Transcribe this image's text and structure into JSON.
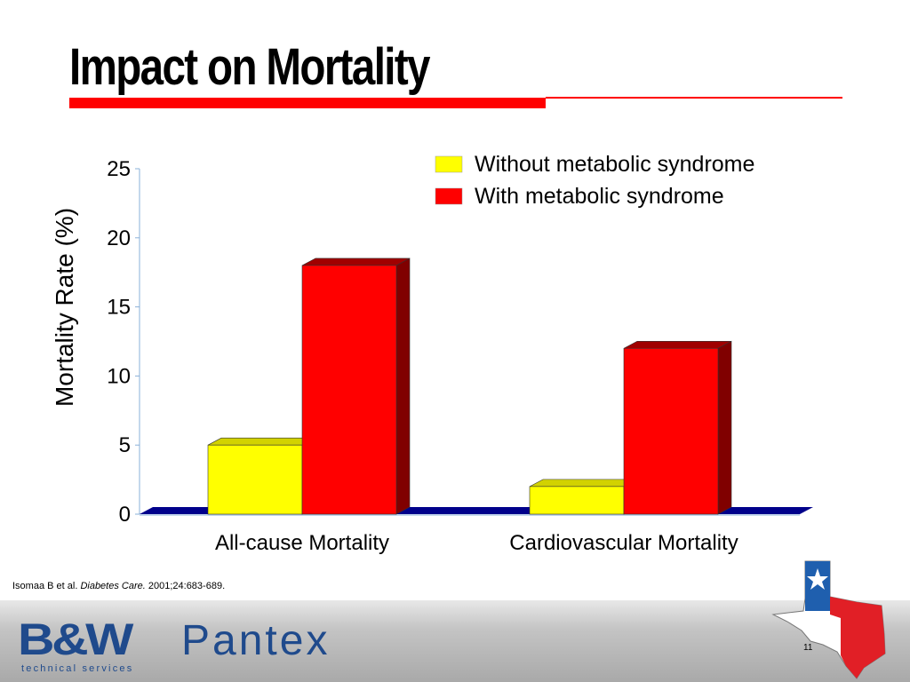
{
  "slide": {
    "title": "Impact on Mortality",
    "citation": {
      "authors": "Isomaa B et al.",
      "journal": "Diabetes Care.",
      "details": "2001;24:683-689."
    },
    "page_number": "11",
    "footer": {
      "bw_logo": "B&W",
      "bw_tagline": "technical services",
      "pantex_logo": "Pantex"
    },
    "colors": {
      "accent_red": "#ff0000",
      "brand_blue": "#1f4a8c",
      "floor_blue": "#00008b"
    },
    "icons": {
      "texas_flag": "texas-flag-icon"
    }
  },
  "chart_data": {
    "type": "bar",
    "style": "3d-clustered-column",
    "categories": [
      "All-cause Mortality",
      "Cardiovascular Mortality"
    ],
    "series": [
      {
        "name": "Without metabolic syndrome",
        "values": [
          5,
          2
        ],
        "color": "#ffff00",
        "side_color": "#b4b400",
        "top_color": "#d2d200"
      },
      {
        "name": "With metabolic syndrome",
        "values": [
          18,
          12
        ],
        "color": "#ff0000",
        "side_color": "#800000",
        "top_color": "#a00000"
      }
    ],
    "ylabel": "Mortality Rate (%)",
    "xlabel": "",
    "ylim": [
      0,
      25
    ],
    "yticks": [
      0,
      5,
      10,
      15,
      20,
      25
    ],
    "grid": false,
    "legend_position": "top-right"
  }
}
